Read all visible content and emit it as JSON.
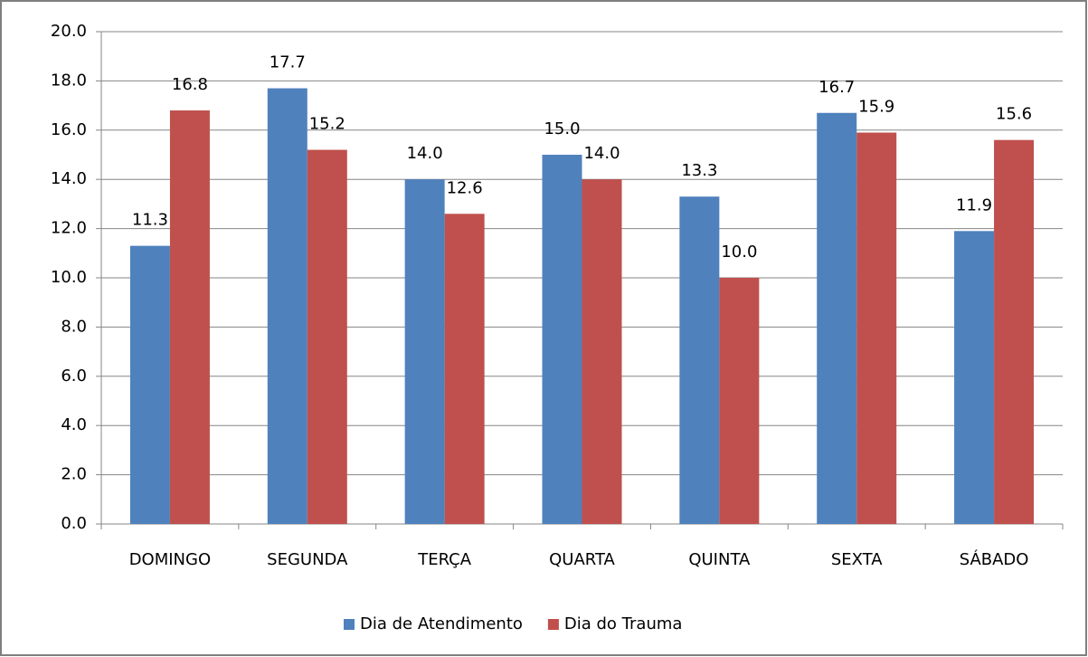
{
  "chart_data": {
    "type": "bar",
    "categories": [
      "DOMINGO",
      "SEGUNDA",
      "TERÇA",
      "QUARTA",
      "QUINTA",
      "SEXTA",
      "SÁBADO"
    ],
    "series": [
      {
        "name": "Dia de Atendimento",
        "color": "#4f81bd",
        "values": [
          11.3,
          17.7,
          14.0,
          15.0,
          13.3,
          16.7,
          11.9
        ],
        "value_labels": [
          "11.3",
          "17.7",
          "14.0",
          "15.0",
          "13.3",
          "16.7",
          "11.9"
        ]
      },
      {
        "name": "Dia do Trauma",
        "color": "#c0504d",
        "values": [
          16.8,
          15.2,
          12.6,
          14.0,
          10.0,
          15.9,
          15.6
        ],
        "value_labels": [
          "16.8",
          "15.2",
          "12.6",
          "14.0",
          "10.0",
          "15.9",
          "15.6"
        ]
      }
    ],
    "ylim": [
      0,
      20
    ],
    "yticks": [
      {
        "value": 0,
        "label": "0.0"
      },
      {
        "value": 2,
        "label": "2.0"
      },
      {
        "value": 4,
        "label": "4.0"
      },
      {
        "value": 6,
        "label": "6.0"
      },
      {
        "value": 8,
        "label": "8.0"
      },
      {
        "value": 10,
        "label": "10.0"
      },
      {
        "value": 12,
        "label": "12.0"
      },
      {
        "value": 14,
        "label": "14.0"
      },
      {
        "value": 16,
        "label": "16.0"
      },
      {
        "value": 18,
        "label": "18.0"
      },
      {
        "value": 20,
        "label": "20.0"
      }
    ],
    "grid": true,
    "legend": "bottom"
  }
}
